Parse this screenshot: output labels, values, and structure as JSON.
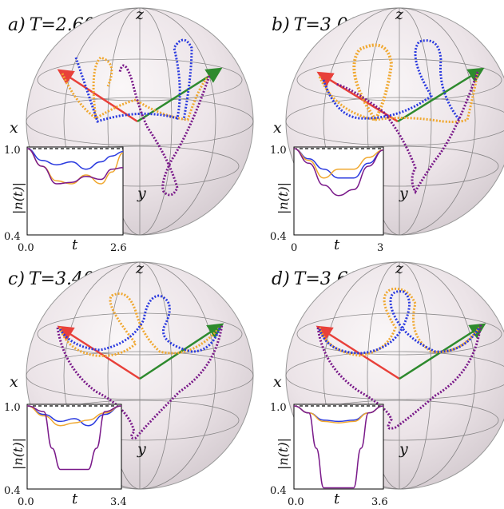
{
  "figure": {
    "panels": [
      {
        "label": "a)",
        "title_text": "T=2.60",
        "axis_labels": {
          "z": "z",
          "x": "x",
          "y": "y"
        },
        "inset": {
          "ylabel": "|n(t)|",
          "xlabel": "t",
          "x_ticks": [
            "0.0",
            "2.6"
          ],
          "y_ticks": [
            "0.4",
            "1.0"
          ],
          "xlim": [
            0,
            2.6
          ],
          "ylim": [
            0.4,
            1.0
          ]
        }
      },
      {
        "label": "b)",
        "title_text": "T=3.00",
        "axis_labels": {
          "z": "z",
          "x": "x",
          "y": "y"
        },
        "inset": {
          "ylabel": "|n(t)|",
          "xlabel": "t",
          "x_ticks": [
            "0",
            "3"
          ],
          "y_ticks": [
            "0.4",
            "1.0"
          ],
          "xlim": [
            0,
            3
          ],
          "ylim": [
            0.4,
            1.0
          ]
        }
      },
      {
        "label": "c)",
        "title_text": "T=3.40",
        "axis_labels": {
          "z": "z",
          "x": "x",
          "y": "y"
        },
        "inset": {
          "ylabel": "|n(t)|",
          "xlabel": "t",
          "x_ticks": [
            "0.0",
            "3.4"
          ],
          "y_ticks": [
            "0.4",
            "1.0"
          ],
          "xlim": [
            0,
            3.4
          ],
          "ylim": [
            0.4,
            1.0
          ]
        }
      },
      {
        "label": "d)",
        "title_text": "T=3.60",
        "axis_labels": {
          "z": "z",
          "x": "x",
          "y": "y"
        },
        "inset": {
          "ylabel": "|n(t)|",
          "xlabel": "t",
          "x_ticks": [
            "0.0",
            "3.6"
          ],
          "y_ticks": [
            "0.4",
            "1.0"
          ],
          "xlim": [
            0,
            3.6
          ],
          "ylim": [
            0.4,
            1.0
          ]
        }
      }
    ]
  },
  "colors": {
    "blue": "#2a3adf",
    "orange": "#f0a830",
    "purple": "#7a1a8a",
    "red_arrow": "#e8403a",
    "green_arrow": "#2e8a2e",
    "sphere": "#ece4e8",
    "grid": "#6a6a6a"
  },
  "chart_data": [
    {
      "type": "line",
      "title": "T=2.60",
      "xlabel": "t",
      "ylabel": "|n(t)|",
      "xlim": [
        0,
        2.6
      ],
      "ylim": [
        0.4,
        1.0
      ],
      "reference_line": 1.0,
      "series": [
        {
          "color": "#2a3adf",
          "x": [
            0,
            0.4,
            0.8,
            1.2,
            1.6,
            2.0,
            2.3,
            2.6
          ],
          "y": [
            1.0,
            0.92,
            0.89,
            0.91,
            0.86,
            0.91,
            0.95,
            0.98
          ]
        },
        {
          "color": "#f0a830",
          "x": [
            0,
            0.4,
            0.8,
            1.2,
            1.6,
            2.0,
            2.3,
            2.6
          ],
          "y": [
            1.0,
            0.88,
            0.78,
            0.76,
            0.82,
            0.76,
            0.84,
            0.97
          ]
        },
        {
          "color": "#7a1a8a",
          "x": [
            0,
            0.4,
            0.8,
            1.2,
            1.6,
            2.0,
            2.3,
            2.6
          ],
          "y": [
            1.0,
            0.88,
            0.76,
            0.77,
            0.81,
            0.79,
            0.86,
            0.87
          ]
        }
      ]
    },
    {
      "type": "line",
      "title": "T=3.00",
      "xlabel": "t",
      "ylabel": "|n(t)|",
      "xlim": [
        0,
        3
      ],
      "ylim": [
        0.4,
        1.0
      ],
      "reference_line": 1.0,
      "series": [
        {
          "color": "#2a3adf",
          "x": [
            0,
            0.5,
            1.0,
            1.5,
            2.0,
            2.5,
            3.0
          ],
          "y": [
            1.0,
            0.93,
            0.86,
            0.8,
            0.8,
            0.9,
            0.99
          ]
        },
        {
          "color": "#f0a830",
          "x": [
            0,
            0.5,
            1.0,
            1.5,
            2.0,
            2.5,
            3.0
          ],
          "y": [
            1.0,
            0.92,
            0.8,
            0.86,
            0.86,
            0.94,
            0.99
          ]
        },
        {
          "color": "#7a1a8a",
          "x": [
            0,
            0.5,
            1.0,
            1.5,
            2.0,
            2.5,
            3.0
          ],
          "y": [
            1.0,
            0.9,
            0.75,
            0.68,
            0.72,
            0.88,
            0.99
          ]
        }
      ]
    },
    {
      "type": "line",
      "title": "T=3.40",
      "xlabel": "t",
      "ylabel": "|n(t)|",
      "xlim": [
        0,
        3.4
      ],
      "ylim": [
        0.4,
        1.0
      ],
      "reference_line": 1.0,
      "series": [
        {
          "color": "#2a3adf",
          "x": [
            0,
            0.6,
            1.2,
            1.7,
            2.2,
            2.8,
            3.4
          ],
          "y": [
            1.0,
            0.94,
            0.89,
            0.91,
            0.86,
            0.94,
            1.0
          ]
        },
        {
          "color": "#f0a830",
          "x": [
            0,
            0.6,
            1.2,
            1.7,
            2.2,
            2.8,
            3.4
          ],
          "y": [
            1.0,
            0.93,
            0.86,
            0.88,
            0.9,
            0.95,
            1.0
          ]
        },
        {
          "color": "#7a1a8a",
          "x": [
            0,
            0.6,
            0.9,
            1.2,
            1.7,
            2.2,
            2.5,
            2.8,
            3.4
          ],
          "y": [
            1.0,
            0.96,
            0.7,
            0.55,
            0.55,
            0.55,
            0.7,
            0.96,
            1.0
          ]
        }
      ]
    },
    {
      "type": "line",
      "title": "T=3.60",
      "xlabel": "t",
      "ylabel": "|n(t)|",
      "xlim": [
        0,
        3.6
      ],
      "ylim": [
        0.4,
        1.0
      ],
      "reference_line": 1.0,
      "series": [
        {
          "color": "#2a3adf",
          "x": [
            0,
            0.6,
            1.2,
            1.8,
            2.4,
            3.0,
            3.6
          ],
          "y": [
            1.0,
            0.95,
            0.9,
            0.89,
            0.9,
            0.95,
            1.0
          ]
        },
        {
          "color": "#f0a830",
          "x": [
            0,
            0.6,
            1.2,
            1.8,
            2.4,
            3.0,
            3.6
          ],
          "y": [
            1.0,
            0.95,
            0.89,
            0.88,
            0.89,
            0.95,
            1.0
          ]
        },
        {
          "color": "#7a1a8a",
          "x": [
            0,
            0.6,
            0.9,
            1.2,
            1.8,
            2.4,
            2.7,
            3.0,
            3.6
          ],
          "y": [
            1.0,
            0.95,
            0.7,
            0.42,
            0.42,
            0.42,
            0.7,
            0.95,
            1.0
          ]
        }
      ]
    }
  ]
}
